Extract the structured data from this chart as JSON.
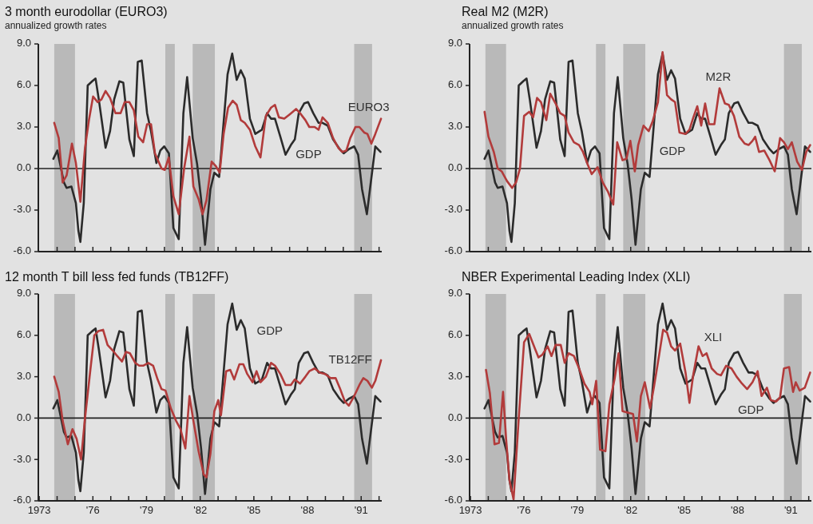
{
  "chart_data": [
    {
      "type": "line",
      "title": "3 month eurodollar (EURO3)",
      "subtitle": "annualized growth rates",
      "xlim": [
        1972.95,
        1992.15
      ],
      "ylim": [
        -6,
        9
      ],
      "xticks": [
        1974,
        1975,
        1976,
        1977,
        1978,
        1979,
        1980,
        1981,
        1982,
        1983,
        1984,
        1985,
        1986,
        1987,
        1988,
        1989,
        1990,
        1991,
        1992
      ],
      "yticks": [
        {
          "value": 9,
          "label": "9.0"
        },
        {
          "value": 6,
          "label": "6.0"
        },
        {
          "value": 3,
          "label": "3.0"
        },
        {
          "value": 0,
          "label": "0.0"
        },
        {
          "value": -3,
          "label": "-3.0"
        },
        {
          "value": -6,
          "label": "-6.0"
        }
      ],
      "tick_labels": "y",
      "bands": [
        {
          "axis": "x",
          "from": 1973.84,
          "to": 1975.0,
          "color": "#b9b9b9"
        },
        {
          "axis": "x",
          "from": 1980.05,
          "to": 1980.58,
          "color": "#b9b9b9"
        },
        {
          "axis": "x",
          "from": 1981.58,
          "to": 1982.82,
          "color": "#b9b9b9"
        },
        {
          "axis": "x",
          "from": 1990.61,
          "to": 1991.61,
          "color": "#b9b9b9"
        }
      ],
      "ref_lines": [
        {
          "axis": "y",
          "value": 0,
          "color": "#222222"
        }
      ],
      "series": [
        {
          "name": "GDP",
          "color": "#2b2b2b",
          "x": [
            1973.79,
            1974.01,
            1974.38,
            1974.53,
            1974.8,
            1975.05,
            1975.19,
            1975.3,
            1975.49,
            1975.71,
            1975.96,
            1976.15,
            1976.33,
            1976.71,
            1976.96,
            1977.19,
            1977.48,
            1977.7,
            1978.04,
            1978.29,
            1978.51,
            1978.73,
            1979.03,
            1979.25,
            1979.55,
            1979.77,
            1979.99,
            1980.25,
            1980.5,
            1980.8,
            1981.06,
            1981.27,
            1981.58,
            1981.83,
            1982.05,
            1982.27,
            1982.57,
            1982.79,
            1983.06,
            1983.53,
            1983.79,
            1984.04,
            1984.27,
            1984.49,
            1984.78,
            1985.08,
            1985.45,
            1985.74,
            1985.96,
            1986.18,
            1986.48,
            1986.77,
            1987.07,
            1987.29,
            1987.51,
            1987.81,
            1988.03,
            1988.32,
            1988.62,
            1988.84,
            1989.13,
            1989.43,
            1989.8,
            1990.02,
            1990.31,
            1990.61,
            1990.83,
            1991.05,
            1991.32,
            1991.49,
            1991.79,
            1992.08
          ],
          "values": [
            0.7,
            1.3,
            -1.0,
            -1.4,
            -1.3,
            -2.5,
            -4.5,
            -5.3,
            -2.5,
            6.0,
            6.3,
            6.5,
            5.0,
            1.5,
            2.7,
            5.0,
            6.3,
            6.2,
            2.1,
            0.9,
            7.7,
            7.8,
            4.0,
            2.7,
            0.4,
            1.3,
            1.6,
            1.1,
            -4.3,
            -5.1,
            4.0,
            6.6,
            2.2,
            0.3,
            -2.2,
            -5.5,
            -1.5,
            -0.3,
            -0.6,
            6.8,
            8.3,
            6.4,
            7.1,
            6.5,
            3.6,
            2.5,
            2.8,
            4.0,
            3.6,
            3.6,
            2.3,
            1.0,
            1.7,
            2.1,
            4.0,
            4.7,
            4.8,
            4.0,
            3.3,
            3.3,
            3.1,
            2.1,
            1.4,
            1.1,
            1.4,
            1.6,
            1.0,
            -1.5,
            -3.3,
            -1.5,
            1.6,
            1.2
          ]
        },
        {
          "name": "EURO3",
          "color": "#b23b3b",
          "x": [
            1973.84,
            1974.09,
            1974.31,
            1974.53,
            1974.83,
            1975.05,
            1975.3,
            1975.56,
            1975.78,
            1976.01,
            1976.27,
            1976.48,
            1976.71,
            1976.96,
            1977.26,
            1977.55,
            1977.78,
            1978.04,
            1978.29,
            1978.54,
            1978.81,
            1979.03,
            1979.25,
            1979.47,
            1979.84,
            1980.02,
            1980.24,
            1980.5,
            1980.8,
            1981.1,
            1981.4,
            1981.62,
            1981.91,
            1982.13,
            1982.35,
            1982.64,
            1982.86,
            1983.09,
            1983.31,
            1983.56,
            1983.82,
            1984.04,
            1984.27,
            1984.49,
            1984.78,
            1985.08,
            1985.37,
            1985.67,
            1985.96,
            1986.18,
            1986.4,
            1986.7,
            1986.99,
            1987.36,
            1987.58,
            1987.88,
            1988.1,
            1988.4,
            1988.62,
            1988.84,
            1989.13,
            1989.43,
            1989.72,
            1989.94,
            1990.17,
            1990.39,
            1990.68,
            1990.9,
            1991.17,
            1991.35,
            1991.57,
            1991.79,
            1992.11
          ],
          "values": [
            3.3,
            2.2,
            -1.0,
            -0.5,
            1.8,
            0.4,
            -2.4,
            1.5,
            3.5,
            5.2,
            4.8,
            5.0,
            5.6,
            5.1,
            4.0,
            4.0,
            4.8,
            4.8,
            4.2,
            2.3,
            1.9,
            3.2,
            3.2,
            1.1,
            0.0,
            -0.1,
            0.8,
            -2.0,
            -3.3,
            0.0,
            2.3,
            -1.3,
            -2.2,
            -3.3,
            -2.3,
            0.5,
            0.2,
            -0.3,
            2.5,
            4.4,
            4.9,
            4.6,
            3.5,
            3.3,
            2.8,
            1.6,
            0.8,
            3.8,
            4.4,
            4.6,
            3.7,
            3.6,
            3.9,
            4.3,
            4.0,
            3.5,
            3.0,
            3.0,
            2.8,
            3.7,
            3.3,
            2.2,
            1.5,
            1.2,
            1.3,
            2.2,
            3.0,
            3.0,
            2.6,
            2.5,
            1.8,
            2.5,
            3.6
          ]
        }
      ]
    },
    {
      "type": "line",
      "title": "Real M2 (M2R)",
      "subtitle": "annualized growth rates",
      "xlim": [
        1972.95,
        1992.15
      ],
      "ylim": [
        -6,
        9
      ],
      "xticks": [
        1974,
        1975,
        1976,
        1977,
        1978,
        1979,
        1980,
        1981,
        1982,
        1983,
        1984,
        1985,
        1986,
        1987,
        1988,
        1989,
        1990,
        1991,
        1992
      ],
      "yticks": [
        {
          "value": 9,
          "label": "9.0"
        },
        {
          "value": 6,
          "label": "6.0"
        },
        {
          "value": 3,
          "label": "3.0"
        },
        {
          "value": 0,
          "label": "0.0"
        },
        {
          "value": -3,
          "label": "-3.0"
        },
        {
          "value": -6,
          "label": "-6.0"
        }
      ],
      "tick_labels": "y",
      "bands": [
        {
          "axis": "x",
          "from": 1973.84,
          "to": 1975.0,
          "color": "#b9b9b9"
        },
        {
          "axis": "x",
          "from": 1980.05,
          "to": 1980.58,
          "color": "#b9b9b9"
        },
        {
          "axis": "x",
          "from": 1981.58,
          "to": 1982.82,
          "color": "#b9b9b9"
        },
        {
          "axis": "x",
          "from": 1990.61,
          "to": 1991.61,
          "color": "#b9b9b9"
        }
      ],
      "ref_lines": [
        {
          "axis": "y",
          "value": 0,
          "color": "#222222"
        }
      ],
      "series": [
        {
          "name": "GDP",
          "color": "#2b2b2b",
          "x": [
            1973.79,
            1974.01,
            1974.38,
            1974.53,
            1974.8,
            1975.05,
            1975.19,
            1975.3,
            1975.49,
            1975.71,
            1975.96,
            1976.15,
            1976.33,
            1976.71,
            1976.96,
            1977.19,
            1977.48,
            1977.7,
            1978.04,
            1978.29,
            1978.51,
            1978.73,
            1979.03,
            1979.25,
            1979.55,
            1979.77,
            1979.99,
            1980.25,
            1980.5,
            1980.8,
            1981.06,
            1981.27,
            1981.58,
            1981.83,
            1982.05,
            1982.27,
            1982.57,
            1982.79,
            1983.06,
            1983.53,
            1983.79,
            1984.04,
            1984.27,
            1984.49,
            1984.78,
            1985.08,
            1985.45,
            1985.74,
            1985.96,
            1986.18,
            1986.48,
            1986.77,
            1987.07,
            1987.29,
            1987.51,
            1987.81,
            1988.03,
            1988.32,
            1988.62,
            1988.84,
            1989.13,
            1989.43,
            1989.8,
            1990.02,
            1990.31,
            1990.61,
            1990.83,
            1991.05,
            1991.32,
            1991.49,
            1991.79,
            1992.08
          ],
          "values": [
            0.7,
            1.3,
            -1.0,
            -1.4,
            -1.3,
            -2.5,
            -4.5,
            -5.3,
            -2.5,
            6.0,
            6.3,
            6.5,
            5.0,
            1.5,
            2.7,
            5.0,
            6.3,
            6.2,
            2.1,
            0.9,
            7.7,
            7.8,
            4.0,
            2.7,
            0.4,
            1.3,
            1.6,
            1.1,
            -4.3,
            -5.1,
            4.0,
            6.6,
            2.2,
            0.3,
            -2.2,
            -5.5,
            -1.5,
            -0.3,
            -0.6,
            6.8,
            8.3,
            6.4,
            7.1,
            6.5,
            3.6,
            2.5,
            2.8,
            4.0,
            3.6,
            3.6,
            2.3,
            1.0,
            1.7,
            2.1,
            4.0,
            4.7,
            4.8,
            4.0,
            3.3,
            3.3,
            3.1,
            2.1,
            1.4,
            1.1,
            1.4,
            1.6,
            1.0,
            -1.5,
            -3.3,
            -1.5,
            1.6,
            1.2
          ]
        },
        {
          "name": "M2R",
          "color": "#b23b3b",
          "x": [
            1973.79,
            1974.01,
            1974.31,
            1974.53,
            1974.75,
            1975.05,
            1975.34,
            1975.56,
            1975.78,
            1976.01,
            1976.3,
            1976.52,
            1976.74,
            1976.96,
            1977.26,
            1977.48,
            1977.78,
            1978.04,
            1978.29,
            1978.51,
            1978.81,
            1979.1,
            1979.32,
            1979.58,
            1979.81,
            1980.14,
            1980.43,
            1980.73,
            1981.02,
            1981.24,
            1981.54,
            1981.76,
            1981.98,
            1982.23,
            1982.42,
            1982.72,
            1983.01,
            1983.23,
            1983.53,
            1983.79,
            1984.04,
            1984.27,
            1984.49,
            1984.74,
            1985.08,
            1985.3,
            1985.52,
            1985.74,
            1985.96,
            1986.18,
            1986.4,
            1986.7,
            1986.99,
            1987.29,
            1987.51,
            1987.8,
            1988.1,
            1988.4,
            1988.62,
            1988.84,
            1988.99,
            1989.21,
            1989.5,
            1989.8,
            1990.09,
            1990.39,
            1990.61,
            1990.83,
            1991.05,
            1991.35,
            1991.62,
            1991.86,
            1992.08
          ],
          "values": [
            4.1,
            2.3,
            1.2,
            0.0,
            -0.2,
            -0.9,
            -1.4,
            -1.0,
            0.0,
            3.8,
            4.1,
            3.7,
            5.1,
            4.8,
            3.5,
            5.4,
            4.7,
            4.0,
            3.8,
            2.6,
            1.9,
            1.7,
            1.2,
            0.3,
            -0.4,
            0.1,
            -1.0,
            -1.7,
            -2.6,
            1.9,
            0.6,
            0.7,
            2.0,
            -0.2,
            1.7,
            3.1,
            2.7,
            3.4,
            4.8,
            8.4,
            5.3,
            5.0,
            4.8,
            2.6,
            2.5,
            2.8,
            3.7,
            4.5,
            3.1,
            4.7,
            3.2,
            3.2,
            5.8,
            4.7,
            4.6,
            3.8,
            2.3,
            1.8,
            1.7,
            2.0,
            2.3,
            1.2,
            1.3,
            0.6,
            -0.2,
            2.2,
            1.9,
            1.4,
            1.9,
            0.5,
            -0.1,
            1.2,
            1.7
          ]
        }
      ]
    },
    {
      "type": "line",
      "title": "12 month T bill less fed funds (TB12FF)",
      "xlim": [
        1972.95,
        1992.15
      ],
      "ylim": [
        -6,
        9
      ],
      "xticks": [
        1973,
        {
          "value": 1974,
          "label": null
        },
        {
          "value": 1975,
          "label": null
        },
        {
          "value": 1976,
          "label": "'76"
        },
        {
          "value": 1977,
          "label": null
        },
        {
          "value": 1978,
          "label": null
        },
        {
          "value": 1979,
          "label": "'79"
        },
        {
          "value": 1980,
          "label": null
        },
        {
          "value": 1981,
          "label": null
        },
        {
          "value": 1982,
          "label": "'82"
        },
        {
          "value": 1983,
          "label": null
        },
        {
          "value": 1984,
          "label": null
        },
        {
          "value": 1985,
          "label": "'85"
        },
        {
          "value": 1986,
          "label": null
        },
        {
          "value": 1987,
          "label": null
        },
        {
          "value": 1988,
          "label": "'88"
        },
        {
          "value": 1989,
          "label": null
        },
        {
          "value": 1990,
          "label": null
        },
        {
          "value": 1991,
          "label": "'91"
        },
        {
          "value": 1992,
          "label": null
        }
      ],
      "yticks": [
        {
          "value": 9,
          "label": "9.0"
        },
        {
          "value": 6,
          "label": "6.0"
        },
        {
          "value": 3,
          "label": "3.0"
        },
        {
          "value": 0,
          "label": "0.0"
        },
        {
          "value": -3,
          "label": "-3.0"
        },
        {
          "value": -6,
          "label": "-6.0"
        }
      ],
      "bands": [
        {
          "axis": "x",
          "from": 1973.84,
          "to": 1975.0,
          "color": "#b9b9b9"
        },
        {
          "axis": "x",
          "from": 1980.05,
          "to": 1980.58,
          "color": "#b9b9b9"
        },
        {
          "axis": "x",
          "from": 1981.58,
          "to": 1982.82,
          "color": "#b9b9b9"
        },
        {
          "axis": "x",
          "from": 1990.61,
          "to": 1991.61,
          "color": "#b9b9b9"
        }
      ],
      "ref_lines": [
        {
          "axis": "y",
          "value": 0,
          "color": "#222222"
        }
      ],
      "series": [
        {
          "name": "GDP",
          "color": "#2b2b2b",
          "x": [
            1973.79,
            1974.01,
            1974.38,
            1974.53,
            1974.8,
            1975.05,
            1975.19,
            1975.3,
            1975.49,
            1975.71,
            1975.96,
            1976.15,
            1976.33,
            1976.71,
            1976.96,
            1977.19,
            1977.48,
            1977.7,
            1978.04,
            1978.29,
            1978.51,
            1978.73,
            1979.03,
            1979.25,
            1979.55,
            1979.77,
            1979.99,
            1980.25,
            1980.5,
            1980.8,
            1981.06,
            1981.27,
            1981.58,
            1981.83,
            1982.05,
            1982.27,
            1982.57,
            1982.79,
            1983.06,
            1983.53,
            1983.79,
            1984.04,
            1984.27,
            1984.49,
            1984.78,
            1985.08,
            1985.45,
            1985.74,
            1985.96,
            1986.18,
            1986.48,
            1986.77,
            1987.07,
            1987.29,
            1987.51,
            1987.81,
            1988.03,
            1988.32,
            1988.62,
            1988.84,
            1989.13,
            1989.43,
            1989.8,
            1990.02,
            1990.31,
            1990.61,
            1990.83,
            1991.05,
            1991.32,
            1991.49,
            1991.79,
            1992.08
          ],
          "values": [
            0.7,
            1.3,
            -1.0,
            -1.4,
            -1.3,
            -2.5,
            -4.5,
            -5.3,
            -2.5,
            6.0,
            6.3,
            6.5,
            5.0,
            1.5,
            2.7,
            5.0,
            6.3,
            6.2,
            2.1,
            0.9,
            7.7,
            7.8,
            4.0,
            2.7,
            0.4,
            1.3,
            1.6,
            1.1,
            -4.3,
            -5.1,
            4.0,
            6.6,
            2.2,
            0.3,
            -2.2,
            -5.5,
            -1.5,
            -0.3,
            -0.6,
            6.8,
            8.3,
            6.4,
            7.1,
            6.5,
            3.6,
            2.5,
            2.8,
            4.0,
            3.6,
            3.6,
            2.3,
            1.0,
            1.7,
            2.1,
            4.0,
            4.7,
            4.8,
            4.0,
            3.3,
            3.3,
            3.1,
            2.1,
            1.4,
            1.1,
            1.4,
            1.6,
            1.0,
            -1.5,
            -3.3,
            -1.5,
            1.6,
            1.2
          ]
        },
        {
          "name": "TB12FF",
          "color": "#b23b3b",
          "x": [
            1973.84,
            1974.09,
            1974.31,
            1974.6,
            1974.86,
            1975.09,
            1975.34,
            1975.56,
            1975.86,
            1976.08,
            1976.3,
            1976.57,
            1976.82,
            1977.11,
            1977.36,
            1977.63,
            1977.85,
            1978.07,
            1978.37,
            1978.59,
            1978.81,
            1979.1,
            1979.37,
            1979.62,
            1979.84,
            1980.06,
            1980.36,
            1980.65,
            1980.9,
            1981.17,
            1981.4,
            1981.62,
            1981.91,
            1982.2,
            1982.35,
            1982.57,
            1982.79,
            1983.01,
            1983.16,
            1983.45,
            1983.68,
            1983.9,
            1984.19,
            1984.41,
            1984.63,
            1984.93,
            1985.15,
            1985.37,
            1985.67,
            1985.96,
            1986.18,
            1986.48,
            1986.77,
            1987.07,
            1987.29,
            1987.58,
            1987.88,
            1988.1,
            1988.4,
            1988.69,
            1988.99,
            1989.28,
            1989.57,
            1989.8,
            1990.09,
            1990.31,
            1990.61,
            1990.9,
            1991.12,
            1991.35,
            1991.6,
            1991.79,
            1992.11
          ],
          "values": [
            3.0,
            1.9,
            -0.2,
            -1.9,
            -0.8,
            -1.5,
            -3.0,
            0.0,
            3.5,
            6.0,
            6.3,
            6.4,
            5.3,
            4.9,
            4.5,
            4.1,
            4.8,
            4.7,
            4.0,
            3.8,
            3.8,
            4.0,
            3.8,
            2.8,
            2.1,
            2.0,
            0.7,
            -0.2,
            -0.8,
            -2.2,
            1.6,
            -0.2,
            -2.4,
            -4.1,
            -4.3,
            -2.6,
            0.5,
            1.3,
            0.2,
            3.4,
            3.5,
            2.8,
            3.9,
            3.9,
            3.2,
            2.6,
            3.4,
            2.6,
            3.0,
            4.0,
            3.8,
            3.2,
            2.4,
            2.4,
            2.8,
            2.5,
            3.0,
            3.4,
            3.6,
            3.3,
            3.2,
            2.9,
            2.9,
            2.2,
            1.2,
            0.9,
            1.6,
            2.4,
            2.9,
            2.7,
            2.2,
            2.7,
            4.2
          ]
        }
      ]
    },
    {
      "type": "line",
      "title": "NBER Experimental Leading Index (XLI)",
      "xlim": [
        1972.95,
        1992.15
      ],
      "ylim": [
        -6,
        9
      ],
      "xticks": [
        1973,
        {
          "value": 1974,
          "label": null
        },
        {
          "value": 1975,
          "label": null
        },
        {
          "value": 1976,
          "label": "'76"
        },
        {
          "value": 1977,
          "label": null
        },
        {
          "value": 1978,
          "label": null
        },
        {
          "value": 1979,
          "label": "'79"
        },
        {
          "value": 1980,
          "label": null
        },
        {
          "value": 1981,
          "label": null
        },
        {
          "value": 1982,
          "label": "'82"
        },
        {
          "value": 1983,
          "label": null
        },
        {
          "value": 1984,
          "label": null
        },
        {
          "value": 1985,
          "label": "'85"
        },
        {
          "value": 1986,
          "label": null
        },
        {
          "value": 1987,
          "label": null
        },
        {
          "value": 1988,
          "label": "'88"
        },
        {
          "value": 1989,
          "label": null
        },
        {
          "value": 1990,
          "label": null
        },
        {
          "value": 1991,
          "label": "'91"
        },
        {
          "value": 1992,
          "label": null
        }
      ],
      "yticks": [
        {
          "value": 9,
          "label": "9.0"
        },
        {
          "value": 6,
          "label": "6.0"
        },
        {
          "value": 3,
          "label": "3.0"
        },
        {
          "value": 0,
          "label": "0.0"
        },
        {
          "value": -3,
          "label": "-3.0"
        },
        {
          "value": -6,
          "label": "-6.0"
        }
      ],
      "bands": [
        {
          "axis": "x",
          "from": 1973.84,
          "to": 1975.0,
          "color": "#b9b9b9"
        },
        {
          "axis": "x",
          "from": 1980.05,
          "to": 1980.58,
          "color": "#b9b9b9"
        },
        {
          "axis": "x",
          "from": 1981.58,
          "to": 1982.82,
          "color": "#b9b9b9"
        },
        {
          "axis": "x",
          "from": 1990.61,
          "to": 1991.61,
          "color": "#b9b9b9"
        }
      ],
      "ref_lines": [
        {
          "axis": "y",
          "value": 0,
          "color": "#222222"
        }
      ],
      "series": [
        {
          "name": "GDP",
          "color": "#2b2b2b",
          "x": [
            1973.79,
            1974.01,
            1974.38,
            1974.53,
            1974.8,
            1975.05,
            1975.19,
            1975.3,
            1975.49,
            1975.71,
            1975.96,
            1976.15,
            1976.33,
            1976.71,
            1976.96,
            1977.19,
            1977.48,
            1977.7,
            1978.04,
            1978.29,
            1978.51,
            1978.73,
            1979.03,
            1979.25,
            1979.55,
            1979.77,
            1979.99,
            1980.25,
            1980.5,
            1980.8,
            1981.06,
            1981.27,
            1981.58,
            1981.83,
            1982.05,
            1982.27,
            1982.57,
            1982.79,
            1983.06,
            1983.53,
            1983.79,
            1984.04,
            1984.27,
            1984.49,
            1984.78,
            1985.08,
            1985.45,
            1985.74,
            1985.96,
            1986.18,
            1986.48,
            1986.77,
            1987.07,
            1987.29,
            1987.51,
            1987.81,
            1988.03,
            1988.32,
            1988.62,
            1988.84,
            1989.13,
            1989.43,
            1989.8,
            1990.02,
            1990.31,
            1990.61,
            1990.83,
            1991.05,
            1991.32,
            1991.49,
            1991.79,
            1992.08
          ],
          "values": [
            0.7,
            1.3,
            -1.0,
            -1.4,
            -1.3,
            -2.5,
            -4.5,
            -5.3,
            -2.5,
            6.0,
            6.3,
            6.5,
            5.0,
            1.5,
            2.7,
            5.0,
            6.3,
            6.2,
            2.1,
            0.9,
            7.7,
            7.8,
            4.0,
            2.7,
            0.4,
            1.3,
            1.6,
            1.1,
            -4.3,
            -5.1,
            4.0,
            6.6,
            2.2,
            0.3,
            -2.2,
            -5.5,
            -1.5,
            -0.3,
            -0.6,
            6.8,
            8.3,
            6.4,
            7.1,
            6.5,
            3.6,
            2.5,
            2.8,
            4.0,
            3.6,
            3.6,
            2.3,
            1.0,
            1.7,
            2.1,
            4.0,
            4.7,
            4.8,
            4.0,
            3.3,
            3.3,
            3.1,
            2.1,
            1.4,
            1.1,
            1.4,
            1.6,
            1.0,
            -1.5,
            -3.3,
            -1.5,
            1.6,
            1.2
          ]
        },
        {
          "name": "XLI",
          "color": "#b23b3b",
          "x": [
            1973.87,
            1974.09,
            1974.35,
            1974.6,
            1974.83,
            1975.0,
            1975.19,
            1975.42,
            1975.71,
            1976.01,
            1976.3,
            1976.6,
            1976.82,
            1977.04,
            1977.33,
            1977.55,
            1977.78,
            1978.07,
            1978.29,
            1978.51,
            1978.81,
            1979.1,
            1979.4,
            1979.69,
            1979.84,
            1980.06,
            1980.28,
            1980.58,
            1980.8,
            1981.09,
            1981.32,
            1981.54,
            1981.83,
            1982.13,
            1982.35,
            1982.57,
            1982.79,
            1983.09,
            1983.31,
            1983.6,
            1983.82,
            1984.04,
            1984.27,
            1984.49,
            1984.78,
            1985.08,
            1985.3,
            1985.52,
            1985.81,
            1986.04,
            1986.26,
            1986.55,
            1986.85,
            1987.07,
            1987.36,
            1987.66,
            1987.95,
            1988.25,
            1988.54,
            1988.84,
            1989.13,
            1989.35,
            1989.65,
            1989.87,
            1990.17,
            1990.39,
            1990.61,
            1990.9,
            1991.12,
            1991.27,
            1991.49,
            1991.78,
            1992.08
          ],
          "values": [
            3.5,
            1.8,
            -1.9,
            -1.8,
            1.9,
            -1.5,
            -4.5,
            -5.9,
            0.0,
            5.5,
            6.1,
            5.1,
            4.4,
            4.6,
            5.2,
            4.5,
            5.3,
            5.3,
            4.0,
            4.7,
            4.5,
            3.6,
            2.5,
            1.9,
            1.0,
            2.7,
            -2.3,
            -2.4,
            1.0,
            2.8,
            4.7,
            0.5,
            0.4,
            0.3,
            -1.7,
            1.6,
            2.6,
            0.7,
            2.3,
            4.6,
            6.4,
            6.2,
            5.2,
            4.9,
            5.4,
            3.3,
            1.1,
            3.2,
            5.2,
            4.5,
            4.7,
            3.6,
            3.2,
            3.1,
            3.8,
            3.6,
            3.0,
            2.5,
            2.1,
            2.6,
            3.4,
            1.6,
            2.2,
            1.3,
            1.2,
            1.5,
            3.6,
            3.7,
            1.9,
            2.6,
            2.0,
            2.2,
            3.3
          ]
        }
      ]
    }
  ]
}
